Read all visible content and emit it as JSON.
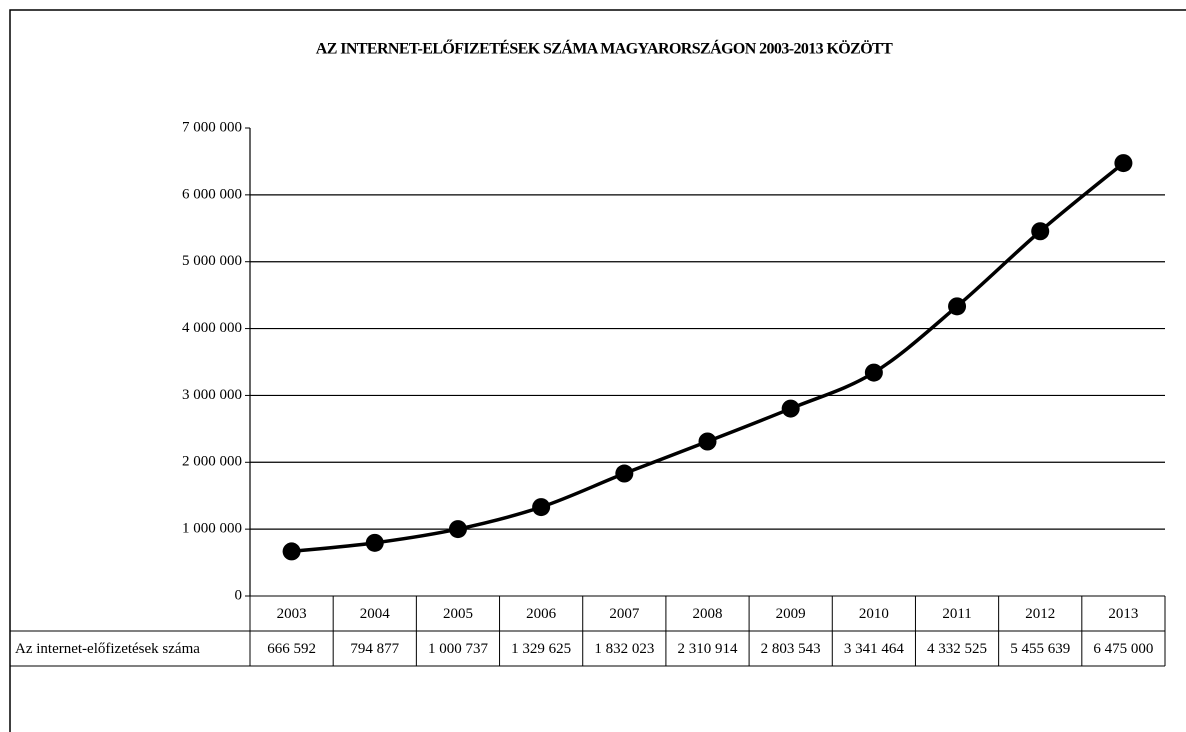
{
  "chart_data": {
    "type": "line",
    "title": "AZ INTERNET-ELŐFIZETÉSEK SZÁMA MAGYARORSZÁGON 2003-2013 KÖZÖTT",
    "categories": [
      "2003",
      "2004",
      "2005",
      "2006",
      "2007",
      "2008",
      "2009",
      "2010",
      "2011",
      "2012",
      "2013"
    ],
    "series": [
      {
        "name": "Az internet-előfizetések száma",
        "color": "#000000",
        "values": [
          666592,
          794877,
          1000737,
          1329625,
          1832023,
          2310914,
          2803543,
          3341464,
          4332525,
          5455639,
          6475000
        ],
        "value_labels": [
          "666 592",
          "794 877",
          "1 000 737",
          "1 329 625",
          "1 832 023",
          "2 310 914",
          "2 803 543",
          "3 341 464",
          "4 332 525",
          "5 455 639",
          "6 475 000"
        ]
      }
    ],
    "ylim": [
      0,
      7000000
    ],
    "yticks": [
      {
        "value": 0,
        "label": "0"
      },
      {
        "value": 1000000,
        "label": "1 000 000"
      },
      {
        "value": 2000000,
        "label": "2 000 000"
      },
      {
        "value": 3000000,
        "label": "3 000 000"
      },
      {
        "value": 4000000,
        "label": "4 000 000"
      },
      {
        "value": 5000000,
        "label": "5 000 000"
      },
      {
        "value": 6000000,
        "label": "6 000 000"
      },
      {
        "value": 7000000,
        "label": "7 000 000"
      }
    ],
    "grid": true
  }
}
